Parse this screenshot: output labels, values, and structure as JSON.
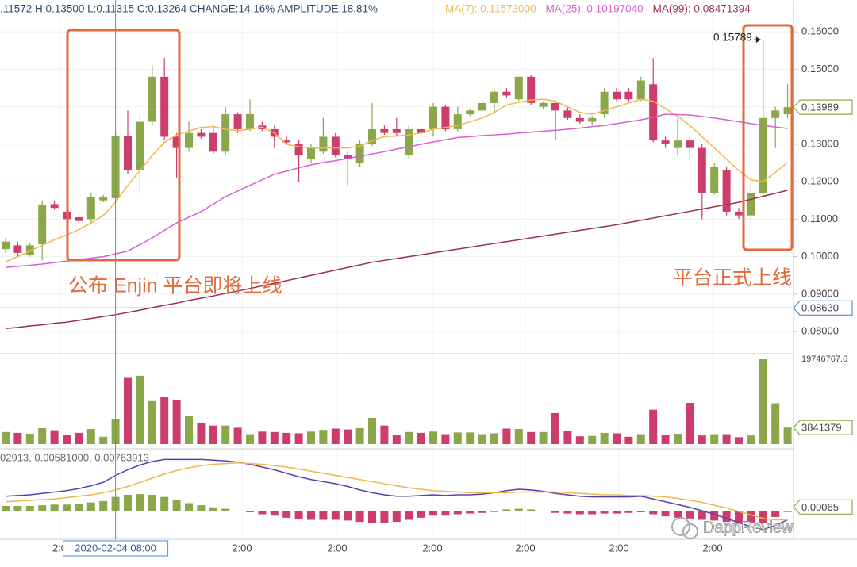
{
  "chart_data": [
    {
      "type": "candlestick",
      "header": ".11572 H:0.13500 L:0.11315 C:0.13264 CHANGE:14.16% AMPLITUDE:18.81%",
      "up_color": "#8aa84a",
      "down_color": "#cc3d6a",
      "open": [
        0.102,
        0.103,
        0.1005,
        0.1033,
        0.114,
        0.112,
        0.1105,
        0.11,
        0.115,
        0.1156,
        0.1321,
        0.123,
        0.136,
        0.148,
        0.132,
        0.129,
        0.133,
        0.133,
        0.128,
        0.138,
        0.134,
        0.135,
        0.134,
        0.131,
        0.13,
        0.126,
        0.128,
        0.132,
        0.127,
        0.125,
        0.13,
        0.134,
        0.134,
        0.127,
        0.134,
        0.134,
        0.14,
        0.134,
        0.138,
        0.139,
        0.141,
        0.144,
        0.142,
        0.148,
        0.14,
        0.141,
        0.139,
        0.137,
        0.136,
        0.138,
        0.144,
        0.144,
        0.142,
        0.146,
        0.131,
        0.129,
        0.131,
        0.129,
        0.117,
        0.123,
        0.112,
        0.111,
        0.117,
        0.137,
        0.138
      ],
      "high": [
        0.105,
        0.104,
        0.1035,
        0.115,
        0.115,
        0.113,
        0.111,
        0.117,
        0.1165,
        0.133,
        0.139,
        0.138,
        0.151,
        0.153,
        0.133,
        0.136,
        0.134,
        0.135,
        0.14,
        0.1385,
        0.142,
        0.136,
        0.135,
        0.132,
        0.131,
        0.13,
        0.137,
        0.133,
        0.128,
        0.131,
        0.141,
        0.135,
        0.137,
        0.135,
        0.1345,
        0.141,
        0.1405,
        0.14,
        0.1395,
        0.142,
        0.1445,
        0.145,
        0.148,
        0.1485,
        0.1415,
        0.1415,
        0.14,
        0.138,
        0.1375,
        0.145,
        0.145,
        0.145,
        0.148,
        0.153,
        0.132,
        0.137,
        0.132,
        0.13,
        0.125,
        0.124,
        0.113,
        0.12,
        0.15789,
        0.14,
        0.146
      ],
      "low": [
        0.101,
        0.1,
        0.1,
        0.099,
        0.1125,
        0.1095,
        0.109,
        0.109,
        0.1145,
        0.115,
        0.122,
        0.117,
        0.135,
        0.131,
        0.121,
        0.128,
        0.1315,
        0.1275,
        0.127,
        0.133,
        0.1335,
        0.1335,
        0.129,
        0.13,
        0.12,
        0.125,
        0.1275,
        0.1265,
        0.119,
        0.124,
        0.1295,
        0.1325,
        0.132,
        0.126,
        0.1325,
        0.132,
        0.1335,
        0.1335,
        0.1375,
        0.1385,
        0.138,
        0.1425,
        0.1415,
        0.1405,
        0.1395,
        0.131,
        0.1365,
        0.1355,
        0.135,
        0.137,
        0.1415,
        0.1415,
        0.1415,
        0.1305,
        0.129,
        0.127,
        0.126,
        0.11,
        0.1165,
        0.111,
        0.11,
        0.109,
        0.116,
        0.129,
        0.137
      ],
      "close": [
        0.104,
        0.101,
        0.103,
        0.1139,
        0.113,
        0.11,
        0.1095,
        0.116,
        0.116,
        0.1321,
        0.123,
        0.136,
        0.148,
        0.132,
        0.129,
        0.133,
        0.132,
        0.128,
        0.138,
        0.134,
        0.138,
        0.134,
        0.132,
        0.1305,
        0.127,
        0.129,
        0.132,
        0.127,
        0.126,
        0.13,
        0.134,
        0.133,
        0.133,
        0.134,
        0.133,
        0.14,
        0.134,
        0.138,
        0.139,
        0.141,
        0.144,
        0.143,
        0.148,
        0.141,
        0.141,
        0.139,
        0.137,
        0.136,
        0.137,
        0.144,
        0.142,
        0.142,
        0.147,
        0.131,
        0.13,
        0.131,
        0.129,
        0.117,
        0.124,
        0.112,
        0.111,
        0.117,
        0.137,
        0.139,
        0.13989
      ],
      "ma": [
        {
          "name": "MA(7): 0.11573000",
          "color": "#efb84e",
          "values": [
            0.0986,
            0.1,
            0.1015,
            0.103,
            0.1045,
            0.1058,
            0.1072,
            0.109,
            0.111,
            0.1145,
            0.119,
            0.123,
            0.127,
            0.1305,
            0.1325,
            0.1335,
            0.1345,
            0.1347,
            0.134,
            0.1336,
            0.134,
            0.1346,
            0.133,
            0.13,
            0.1293,
            0.129,
            0.129,
            0.129,
            0.129,
            0.1295,
            0.131,
            0.132,
            0.1322,
            0.1325,
            0.133,
            0.134,
            0.1345,
            0.135,
            0.136,
            0.137,
            0.1385,
            0.1405,
            0.1412,
            0.1418,
            0.142,
            0.1415,
            0.14,
            0.1385,
            0.138,
            0.139,
            0.14,
            0.141,
            0.142,
            0.1415,
            0.1395,
            0.1375,
            0.135,
            0.132,
            0.129,
            0.126,
            0.123,
            0.1205,
            0.12,
            0.1225,
            0.1251
          ]
        },
        {
          "name": "MA(25): 0.10197040",
          "color": "#d65fd6",
          "values": [
            0.0971,
            0.0974,
            0.0977,
            0.098,
            0.0984,
            0.0988,
            0.0992,
            0.0996,
            0.1,
            0.1007,
            0.1015,
            0.1032,
            0.105,
            0.107,
            0.109,
            0.1105,
            0.112,
            0.114,
            0.116,
            0.1175,
            0.119,
            0.1205,
            0.122,
            0.1228,
            0.1237,
            0.1245,
            0.1251,
            0.1256,
            0.1262,
            0.1268,
            0.1274,
            0.128,
            0.1287,
            0.1293,
            0.13,
            0.1306,
            0.1312,
            0.1318,
            0.132,
            0.1323,
            0.1325,
            0.1327,
            0.133,
            0.1332,
            0.1335,
            0.1337,
            0.134,
            0.1343,
            0.1347,
            0.135,
            0.1355,
            0.136,
            0.1365,
            0.1372,
            0.138,
            0.1379,
            0.1378,
            0.1374,
            0.137,
            0.1365,
            0.136,
            0.1355,
            0.135,
            0.1346,
            0.1342
          ]
        },
        {
          "name": "MA(99): 0.08471394",
          "color": "#9c2f4c",
          "values": [
            0.0808,
            0.0811,
            0.0815,
            0.0818,
            0.0822,
            0.0825,
            0.083,
            0.0835,
            0.084,
            0.0845,
            0.0851,
            0.0857,
            0.0864,
            0.087,
            0.0876,
            0.0883,
            0.0889,
            0.0895,
            0.0902,
            0.0908,
            0.0915,
            0.0922,
            0.0929,
            0.0936,
            0.0943,
            0.095,
            0.0957,
            0.0964,
            0.0971,
            0.0978,
            0.0985,
            0.099,
            0.0995,
            0.1,
            0.1005,
            0.101,
            0.1015,
            0.102,
            0.1025,
            0.103,
            0.1035,
            0.104,
            0.1045,
            0.105,
            0.1055,
            0.106,
            0.1065,
            0.107,
            0.1075,
            0.108,
            0.1085,
            0.1091,
            0.1097,
            0.1103,
            0.1109,
            0.1115,
            0.1121,
            0.1127,
            0.1133,
            0.1139,
            0.1145,
            0.1153,
            0.1161,
            0.1169,
            0.1177
          ]
        }
      ],
      "ylim": [
        0.0743,
        0.1685
      ],
      "yticks": [
        {
          "value": 0.16,
          "label": "0.16000"
        },
        {
          "value": 0.15,
          "label": "0.15000"
        },
        {
          "value": 0.14,
          "label": "0.14000"
        },
        {
          "value": 0.13,
          "label": "0.13000"
        },
        {
          "value": 0.12,
          "label": "0.12000"
        },
        {
          "value": 0.11,
          "label": "0.11000"
        },
        {
          "value": 0.1,
          "label": "0.10000"
        },
        {
          "value": 0.09,
          "label": "0.09000"
        },
        {
          "value": 0.08,
          "label": "0.08000"
        }
      ],
      "last_price": 0.13989,
      "crosshair_price": {
        "value": 0.0863,
        "label": "0.08630"
      },
      "peak_label": 0.15789,
      "annotations": [
        "公布 Enjin 平台即将上线",
        "平台正式上线"
      ],
      "x_labels": [
        "2:0",
        "2:00",
        "2:00",
        "2:00",
        "2:00",
        "2:00",
        "2:00"
      ],
      "crosshair_time": "2020-02-04 08:00",
      "watermark": "DappReview"
    },
    {
      "type": "volume",
      "values": [
        2800000,
        2600000,
        2400000,
        3700000,
        3200000,
        2200000,
        2600000,
        3500000,
        1700000,
        5900000,
        15400000,
        15900000,
        10000000,
        10900000,
        10200000,
        6600000,
        4800000,
        4300000,
        4300000,
        3800000,
        2300000,
        2900000,
        2800000,
        2600000,
        2500000,
        2900000,
        3300000,
        3600000,
        3400000,
        3700000,
        6100000,
        4300000,
        2100000,
        2800000,
        2600000,
        2900000,
        2300000,
        2700000,
        2700000,
        2300000,
        2500000,
        3600000,
        3500000,
        2800000,
        2800000,
        7200000,
        3100000,
        1800000,
        1900000,
        2600000,
        2500000,
        1700000,
        2300000,
        8000000,
        2100000,
        2400000,
        9600000,
        2000000,
        2300000,
        2300000,
        1600000,
        2000000,
        19746767.6,
        9500000,
        3841379
      ],
      "ylim": [
        0,
        19746767.6
      ],
      "yticks": [
        19746767.6
      ],
      "last_value": 3841379
    },
    {
      "type": "macd",
      "header": "02913, 0.00581000, 0.00763913",
      "series": [
        {
          "color": "#5a3db5",
          "values": [
            0.0022,
            0.0023,
            0.0024,
            0.0026,
            0.0028,
            0.003,
            0.0033,
            0.0037,
            0.0042,
            0.0052,
            0.006,
            0.0067,
            0.0072,
            0.0075,
            0.0075,
            0.0075,
            0.0075,
            0.0074,
            0.0073,
            0.0071,
            0.0068,
            0.0064,
            0.006,
            0.0055,
            0.005,
            0.0046,
            0.0043,
            0.004,
            0.0036,
            0.0031,
            0.0027,
            0.0024,
            0.0022,
            0.0022,
            0.0023,
            0.0024,
            0.0023,
            0.0024,
            0.0024,
            0.0025,
            0.0027,
            0.003,
            0.0032,
            0.0031,
            0.0029,
            0.0026,
            0.0024,
            0.0022,
            0.0021,
            0.0021,
            0.0021,
            0.0021,
            0.0022,
            0.0018,
            0.0014,
            0.001,
            0.0006,
            0.0001,
            -0.0004,
            -0.001,
            -0.0016,
            -0.0022,
            -0.0026,
            -0.002,
            -0.0012
          ]
        },
        {
          "color": "#efb84e",
          "values": [
            0.0014,
            0.0015,
            0.0016,
            0.0017,
            0.0018,
            0.002,
            0.0022,
            0.0024,
            0.0027,
            0.0031,
            0.0036,
            0.0042,
            0.0048,
            0.0054,
            0.0059,
            0.0063,
            0.0066,
            0.0068,
            0.0069,
            0.007,
            0.0069,
            0.0068,
            0.0066,
            0.0064,
            0.0061,
            0.0058,
            0.0055,
            0.0052,
            0.0049,
            0.0046,
            0.0043,
            0.004,
            0.0037,
            0.0034,
            0.0032,
            0.003,
            0.0029,
            0.0028,
            0.0027,
            0.0027,
            0.0027,
            0.0027,
            0.0028,
            0.0028,
            0.0028,
            0.0028,
            0.0027,
            0.0026,
            0.0025,
            0.0024,
            0.0024,
            0.0023,
            0.0023,
            0.0022,
            0.0021,
            0.0019,
            0.0016,
            0.0013,
            0.0009,
            0.0005,
            0.0,
            -0.0005,
            -0.001,
            -0.0012,
            -0.0012
          ]
        }
      ],
      "histogram": [
        0.0008,
        0.0008,
        0.0008,
        0.0009,
        0.001,
        0.001,
        0.0011,
        0.0013,
        0.0015,
        0.0021,
        0.0024,
        0.0025,
        0.0024,
        0.0021,
        0.0016,
        0.0012,
        0.0009,
        0.0006,
        0.0004,
        0.0001,
        -0.0001,
        -0.0004,
        -0.0006,
        -0.0009,
        -0.0011,
        -0.0012,
        -0.0012,
        -0.0012,
        -0.0013,
        -0.0015,
        -0.0016,
        -0.0016,
        -0.0015,
        -0.0012,
        -0.0009,
        -0.0006,
        -0.0006,
        -0.0004,
        -0.0003,
        -0.0002,
        0.0,
        0.0003,
        0.0004,
        0.0003,
        0.0001,
        -0.0002,
        -0.0003,
        -0.0004,
        -0.0004,
        -0.0003,
        -0.0003,
        -0.0002,
        -0.0001,
        -0.0004,
        -0.0007,
        -0.0009,
        -0.001,
        -0.0012,
        -0.0013,
        -0.0015,
        -0.0016,
        -0.0017,
        -0.0016,
        -0.0008,
        0.0
      ],
      "ylim": [
        -0.004,
        0.0088
      ],
      "last_value": 0.00065
    }
  ]
}
